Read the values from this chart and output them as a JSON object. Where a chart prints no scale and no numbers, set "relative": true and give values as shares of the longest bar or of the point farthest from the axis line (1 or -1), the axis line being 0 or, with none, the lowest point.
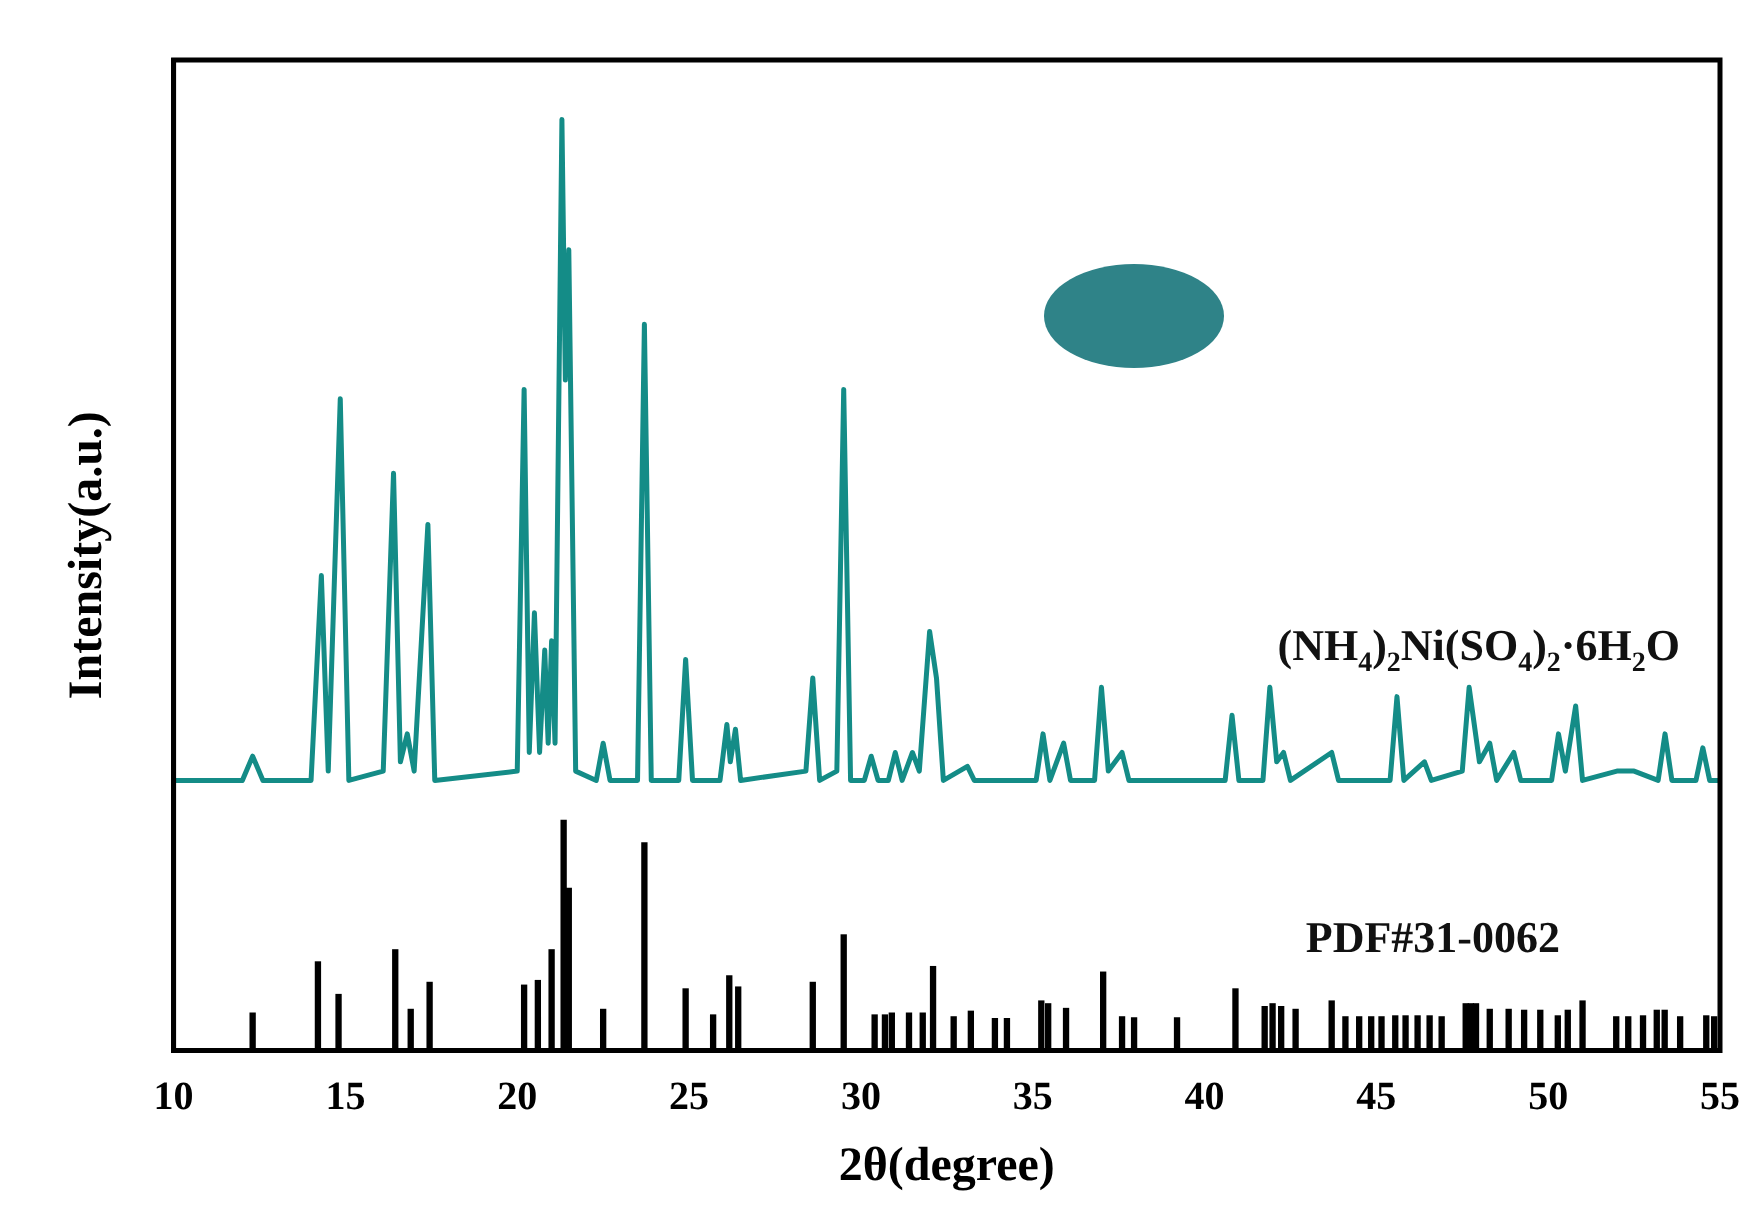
{
  "chart_data": {
    "type": "line",
    "relative": true,
    "xlabel": "2θ(degree)",
    "ylabel": "Intensity(a.u.)",
    "xlim": [
      10,
      55
    ],
    "xticks": [
      10,
      15,
      20,
      25,
      30,
      35,
      40,
      45,
      50,
      55
    ],
    "legend": false,
    "grid": false,
    "marker": "none",
    "series": [
      {
        "name": "(NH$_{4}$)$_{2}$Ni(SO$_{4}$)$_{2}$·6H$_{2}$O",
        "color": "#148c87",
        "x": [
          10,
          12.0,
          12.3,
          12.6,
          14.0,
          14.3,
          14.5,
          14.85,
          15.1,
          16.1,
          16.4,
          16.6,
          16.8,
          17.0,
          17.4,
          17.6,
          20.0,
          20.2,
          20.35,
          20.5,
          20.65,
          20.8,
          20.9,
          21.0,
          21.1,
          21.3,
          21.4,
          21.5,
          21.7,
          22.3,
          22.5,
          22.7,
          23.5,
          23.7,
          23.9,
          24.7,
          24.9,
          25.1,
          25.9,
          26.1,
          26.2,
          26.35,
          26.5,
          28.4,
          28.6,
          28.8,
          29.3,
          29.5,
          29.7,
          30.1,
          30.3,
          30.5,
          30.8,
          31.0,
          31.2,
          31.5,
          31.7,
          32.0,
          32.2,
          32.4,
          33.1,
          33.3,
          35.1,
          35.3,
          35.5,
          35.9,
          36.1,
          36.8,
          37.0,
          37.2,
          37.6,
          37.8,
          40.6,
          40.8,
          41.0,
          41.7,
          41.9,
          42.1,
          42.3,
          42.5,
          43.7,
          43.9,
          45.4,
          45.6,
          45.8,
          46.4,
          46.6,
          47.5,
          47.7,
          48.0,
          48.3,
          48.5,
          49.0,
          49.2,
          50.1,
          50.3,
          50.5,
          50.8,
          51.0,
          52.0,
          52.5,
          53.2,
          53.4,
          53.6,
          54.3,
          54.5,
          54.7,
          55
        ],
        "values": [
          0.29,
          0.29,
          0.316,
          0.29,
          0.29,
          0.51,
          0.3,
          0.7,
          0.29,
          0.3,
          0.62,
          0.31,
          0.34,
          0.3,
          0.565,
          0.29,
          0.3,
          0.71,
          0.32,
          0.47,
          0.32,
          0.43,
          0.33,
          0.44,
          0.33,
          1.0,
          0.72,
          0.86,
          0.3,
          0.29,
          0.33,
          0.29,
          0.29,
          0.78,
          0.29,
          0.29,
          0.42,
          0.29,
          0.29,
          0.35,
          0.31,
          0.345,
          0.29,
          0.3,
          0.4,
          0.29,
          0.3,
          0.71,
          0.29,
          0.29,
          0.316,
          0.29,
          0.29,
          0.32,
          0.29,
          0.32,
          0.3,
          0.45,
          0.4,
          0.29,
          0.305,
          0.29,
          0.29,
          0.34,
          0.29,
          0.33,
          0.29,
          0.29,
          0.39,
          0.3,
          0.32,
          0.29,
          0.29,
          0.36,
          0.29,
          0.29,
          0.39,
          0.31,
          0.32,
          0.29,
          0.32,
          0.29,
          0.29,
          0.38,
          0.29,
          0.31,
          0.29,
          0.3,
          0.39,
          0.31,
          0.33,
          0.29,
          0.32,
          0.29,
          0.29,
          0.34,
          0.3,
          0.37,
          0.29,
          0.3,
          0.3,
          0.29,
          0.34,
          0.29,
          0.29,
          0.325,
          0.29,
          0.29
        ]
      },
      {
        "name": "PDF#31-0062",
        "type": "bar",
        "color": "#000000",
        "x": [
          12.3,
          14.2,
          14.8,
          16.45,
          16.9,
          17.45,
          20.2,
          20.6,
          21.0,
          21.35,
          21.5,
          22.5,
          23.7,
          24.9,
          25.7,
          26.17,
          26.43,
          28.6,
          29.5,
          30.4,
          30.7,
          30.9,
          31.4,
          31.8,
          32.1,
          32.7,
          33.2,
          33.9,
          34.25,
          35.25,
          35.45,
          35.97,
          37.05,
          37.6,
          37.95,
          39.2,
          40.9,
          41.75,
          41.98,
          42.23,
          42.65,
          43.7,
          44.1,
          44.5,
          44.85,
          45.15,
          45.55,
          45.85,
          46.2,
          46.55,
          46.9,
          47.6,
          47.75,
          47.9,
          48.3,
          48.85,
          49.3,
          49.77,
          50.28,
          50.57,
          51.0,
          51.98,
          52.33,
          52.76,
          53.16,
          53.39,
          53.84,
          54.6,
          54.83
        ],
        "values": [
          0.04,
          0.095,
          0.06,
          0.108,
          0.044,
          0.073,
          0.07,
          0.075,
          0.108,
          0.247,
          0.174,
          0.044,
          0.223,
          0.066,
          0.038,
          0.08,
          0.068,
          0.073,
          0.124,
          0.038,
          0.038,
          0.04,
          0.04,
          0.04,
          0.09,
          0.036,
          0.042,
          0.034,
          0.034,
          0.053,
          0.05,
          0.045,
          0.084,
          0.036,
          0.035,
          0.035,
          0.066,
          0.047,
          0.05,
          0.047,
          0.044,
          0.053,
          0.036,
          0.036,
          0.036,
          0.036,
          0.037,
          0.037,
          0.037,
          0.037,
          0.036,
          0.05,
          0.05,
          0.05,
          0.044,
          0.044,
          0.043,
          0.043,
          0.037,
          0.043,
          0.053,
          0.036,
          0.036,
          0.037,
          0.043,
          0.043,
          0.036,
          0.037,
          0.036
        ]
      }
    ]
  }
}
